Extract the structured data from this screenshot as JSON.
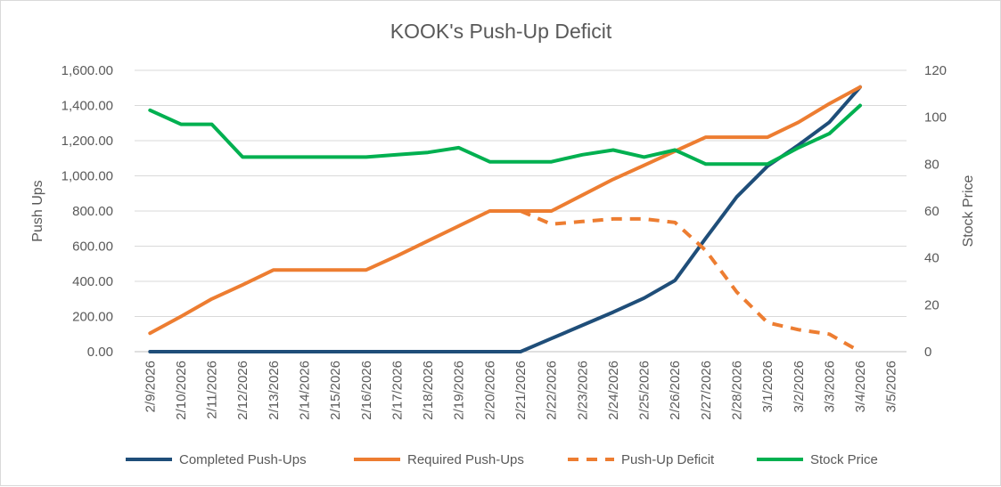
{
  "chart_data": {
    "type": "line",
    "title": "KOOK's Push-Up Deficit",
    "ylabel": "Push Ups",
    "y2label": "Stock Price",
    "categories": [
      "2/9/2026",
      "2/10/2026",
      "2/11/2026",
      "2/12/2026",
      "2/13/2026",
      "2/14/2026",
      "2/15/2026",
      "2/16/2026",
      "2/17/2026",
      "2/18/2026",
      "2/19/2026",
      "2/20/2026",
      "2/21/2026",
      "2/22/2026",
      "2/23/2026",
      "2/24/2026",
      "2/25/2026",
      "2/26/2026",
      "2/27/2026",
      "2/28/2026",
      "3/1/2026",
      "3/2/2026",
      "3/3/2026",
      "3/4/2026",
      "3/5/2026"
    ],
    "ylim": [
      0,
      1600
    ],
    "y_ticks": [
      "0.00",
      "200.00",
      "400.00",
      "600.00",
      "800.00",
      "1,000.00",
      "1,200.00",
      "1,400.00",
      "1,600.00"
    ],
    "y2lim": [
      0,
      120
    ],
    "y2_ticks": [
      "0",
      "20",
      "40",
      "60",
      "80",
      "100",
      "120"
    ],
    "legend_position": "bottom",
    "grid": true,
    "series": [
      {
        "name": "Completed Push-Ups",
        "axis": "left",
        "color": "#1f4e79",
        "dash": false,
        "values": [
          0,
          0,
          0,
          0,
          0,
          0,
          0,
          0,
          0,
          0,
          0,
          0,
          0,
          75,
          150,
          225,
          305,
          405,
          645,
          880,
          1055,
          1175,
          1305,
          1505,
          null
        ]
      },
      {
        "name": "Required Push-Ups",
        "axis": "left",
        "color": "#ed7d31",
        "dash": false,
        "values": [
          105,
          200,
          300,
          380,
          465,
          465,
          465,
          465,
          545,
          630,
          715,
          800,
          800,
          800,
          890,
          980,
          1060,
          1140,
          1220,
          1220,
          1220,
          1305,
          1410,
          1505,
          null
        ]
      },
      {
        "name": "Push-Up Deficit",
        "axis": "left",
        "color": "#ed7d31",
        "dash": true,
        "values": [
          null,
          null,
          null,
          null,
          null,
          null,
          null,
          null,
          null,
          null,
          null,
          null,
          800,
          725,
          740,
          755,
          755,
          735,
          575,
          340,
          165,
          125,
          100,
          0,
          null
        ]
      },
      {
        "name": "Stock Price",
        "axis": "right",
        "color": "#00b050",
        "dash": false,
        "values": [
          103,
          97,
          97,
          83,
          83,
          83,
          83,
          83,
          84,
          85,
          87,
          81,
          81,
          81,
          84,
          86,
          83,
          86,
          80,
          80,
          80,
          87,
          93,
          105,
          null
        ]
      }
    ]
  }
}
